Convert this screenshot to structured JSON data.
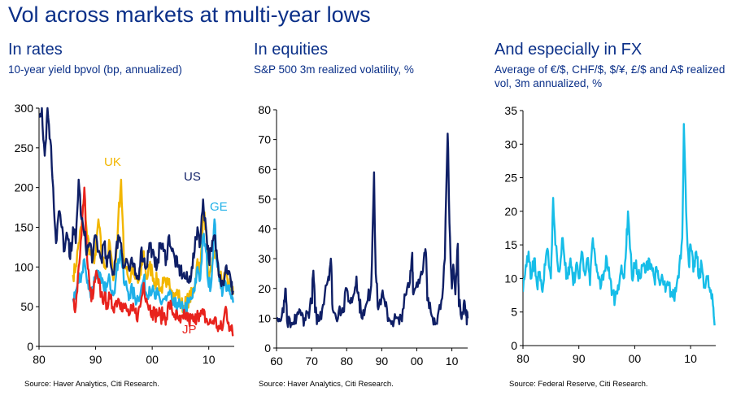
{
  "title": "Vol across markets at multi-year lows",
  "colors": {
    "title": "#0a2f88",
    "us": "#0f1f66",
    "uk": "#f2b600",
    "ge": "#1fb0e8",
    "jp": "#e8231d",
    "spx": "#0f1f66",
    "fx": "#16bde8"
  },
  "panels": [
    {
      "title": "In rates",
      "subtitle": "10-year yield bpvol (bp, annualized)",
      "source": "Source: Haver Analytics, Citi Research."
    },
    {
      "title": "In equities",
      "subtitle": "S&P 500 3m realized volatility, %",
      "source": "Source: Haver Analytics, Citi Research."
    },
    {
      "title": "And especially in FX",
      "subtitle": "Average of €/$, CHF/$, $/¥, £/$ and A$ realized vol, 3m annualized, %",
      "source": "Source: Federal Reserve, Citi Research."
    }
  ],
  "chart_data": [
    {
      "type": "line",
      "title": "In rates",
      "subtitle": "10-year yield bpvol (bp, annualized)",
      "xlim": [
        1980,
        2014.5
      ],
      "ylim": [
        0,
        300
      ],
      "xticks": [
        1980,
        1990,
        2000,
        2010
      ],
      "xtick_labels": [
        "80",
        "90",
        "00",
        "10"
      ],
      "yticks": [
        0,
        50,
        100,
        150,
        200,
        250,
        300
      ],
      "ytick_labels": [
        "0",
        "50",
        "100",
        "150",
        "200",
        "250",
        "300"
      ],
      "annotations": [
        {
          "text": "UK",
          "series": "UK"
        },
        {
          "text": "US",
          "series": "US"
        },
        {
          "text": "GE",
          "series": "GE"
        },
        {
          "text": "JP",
          "series": "JP"
        }
      ],
      "series": [
        {
          "name": "UK",
          "color_key": "uk",
          "x": [
            1986,
            1986.5,
            1987,
            1987.5,
            1988,
            1988.5,
            1989,
            1989.5,
            1990,
            1990.5,
            1991,
            1991.5,
            1992,
            1992.5,
            1993,
            1993.5,
            1994,
            1994.5,
            1995,
            1995.5,
            1996,
            1996.5,
            1997,
            1997.5,
            1998,
            1998.5,
            1999,
            1999.5,
            2000,
            2000.5,
            2001,
            2001.5,
            2002,
            2002.5,
            2003,
            2003.5,
            2004,
            2004.5,
            2005,
            2005.5,
            2006,
            2006.5,
            2007,
            2007.5,
            2008,
            2008.5,
            2009,
            2009.5,
            2010,
            2010.5,
            2011,
            2011.5,
            2012,
            2012.5,
            2013,
            2013.5,
            2014,
            2014.3
          ],
          "y": [
            90,
            100,
            130,
            150,
            190,
            140,
            120,
            110,
            115,
            160,
            120,
            100,
            110,
            130,
            90,
            100,
            160,
            210,
            110,
            100,
            80,
            100,
            85,
            80,
            90,
            120,
            85,
            100,
            95,
            80,
            85,
            70,
            80,
            75,
            85,
            70,
            60,
            70,
            55,
            50,
            55,
            60,
            65,
            75,
            110,
            90,
            170,
            150,
            80,
            95,
            120,
            105,
            90,
            75,
            100,
            80,
            70,
            65
          ]
        },
        {
          "name": "GE",
          "color_key": "ge",
          "x": [
            1986,
            1986.5,
            1987,
            1987.5,
            1988,
            1988.5,
            1989,
            1989.5,
            1990,
            1990.5,
            1991,
            1991.5,
            1992,
            1992.5,
            1993,
            1993.5,
            1994,
            1994.5,
            1995,
            1995.5,
            1996,
            1996.5,
            1997,
            1997.5,
            1998,
            1998.5,
            1999,
            1999.5,
            2000,
            2000.5,
            2001,
            2001.5,
            2002,
            2002.5,
            2003,
            2003.5,
            2004,
            2004.5,
            2005,
            2005.5,
            2006,
            2006.5,
            2007,
            2007.5,
            2008,
            2008.5,
            2009,
            2009.5,
            2010,
            2010.5,
            2011,
            2011.5,
            2012,
            2012.5,
            2013,
            2013.5,
            2014,
            2014.3
          ],
          "y": [
            60,
            70,
            80,
            90,
            110,
            80,
            70,
            75,
            90,
            95,
            80,
            70,
            75,
            85,
            70,
            80,
            110,
            120,
            80,
            75,
            65,
            70,
            60,
            62,
            70,
            85,
            65,
            75,
            70,
            60,
            65,
            55,
            60,
            58,
            65,
            55,
            50,
            55,
            48,
            45,
            50,
            55,
            60,
            70,
            100,
            85,
            140,
            120,
            75,
            85,
            160,
            100,
            85,
            70,
            80,
            70,
            60,
            55
          ]
        },
        {
          "name": "JP",
          "color_key": "jp",
          "x": [
            1986,
            1986.5,
            1987,
            1987.5,
            1988,
            1988.5,
            1989,
            1989.5,
            1990,
            1990.5,
            1991,
            1991.5,
            1992,
            1992.5,
            1993,
            1993.5,
            1994,
            1994.5,
            1995,
            1995.5,
            1996,
            1996.5,
            1997,
            1997.5,
            1998,
            1998.5,
            1999,
            1999.5,
            2000,
            2000.5,
            2001,
            2001.5,
            2002,
            2002.5,
            2003,
            2003.5,
            2004,
            2004.5,
            2005,
            2005.5,
            2006,
            2006.5,
            2007,
            2007.5,
            2008,
            2008.5,
            2009,
            2009.5,
            2010,
            2010.5,
            2011,
            2011.5,
            2012,
            2012.5,
            2013,
            2013.5,
            2014,
            2014.3
          ],
          "y": [
            60,
            50,
            100,
            140,
            200,
            110,
            70,
            60,
            90,
            80,
            65,
            60,
            55,
            60,
            50,
            55,
            60,
            55,
            50,
            45,
            40,
            45,
            42,
            40,
            55,
            80,
            60,
            50,
            45,
            40,
            42,
            38,
            40,
            36,
            55,
            45,
            40,
            35,
            30,
            35,
            40,
            32,
            35,
            30,
            45,
            38,
            40,
            35,
            28,
            30,
            35,
            25,
            22,
            25,
            50,
            30,
            20,
            15
          ]
        },
        {
          "name": "US",
          "color_key": "us",
          "x": [
            1980,
            1980.5,
            1981,
            1981.5,
            1982,
            1982.5,
            1983,
            1983.5,
            1984,
            1984.5,
            1985,
            1985.5,
            1986,
            1986.5,
            1987,
            1987.5,
            1988,
            1988.5,
            1989,
            1989.5,
            1990,
            1990.5,
            1991,
            1991.5,
            1992,
            1992.5,
            1993,
            1993.5,
            1994,
            1994.5,
            1995,
            1995.5,
            1996,
            1996.5,
            1997,
            1997.5,
            1998,
            1998.5,
            1999,
            1999.5,
            2000,
            2000.5,
            2001,
            2001.5,
            2002,
            2002.5,
            2003,
            2003.5,
            2004,
            2004.5,
            2005,
            2005.5,
            2006,
            2006.5,
            2007,
            2007.5,
            2008,
            2008.5,
            2009,
            2009.5,
            2010,
            2010.5,
            2011,
            2011.5,
            2012,
            2012.5,
            2013,
            2013.5,
            2014,
            2014.3
          ],
          "y": [
            290,
            300,
            240,
            300,
            260,
            200,
            130,
            170,
            150,
            120,
            140,
            110,
            150,
            130,
            210,
            160,
            140,
            120,
            130,
            110,
            140,
            120,
            110,
            130,
            100,
            120,
            90,
            110,
            140,
            130,
            100,
            110,
            95,
            105,
            90,
            85,
            120,
            110,
            100,
            130,
            120,
            100,
            110,
            130,
            120,
            110,
            140,
            120,
            110,
            100,
            95,
            90,
            85,
            80,
            100,
            120,
            150,
            130,
            185,
            150,
            110,
            120,
            140,
            110,
            90,
            80,
            100,
            95,
            75,
            70
          ]
        }
      ]
    },
    {
      "type": "line",
      "title": "In equities",
      "subtitle": "S&P 500 3m realized volatility, %",
      "xlim": [
        1960,
        2014.5
      ],
      "ylim": [
        0,
        80
      ],
      "xticks": [
        1960,
        1970,
        1980,
        1990,
        2000,
        2010
      ],
      "xtick_labels": [
        "60",
        "70",
        "80",
        "90",
        "00",
        "10"
      ],
      "yticks": [
        0,
        10,
        20,
        30,
        40,
        50,
        60,
        70,
        80
      ],
      "ytick_labels": [
        "0",
        "10",
        "20",
        "30",
        "40",
        "50",
        "60",
        "70",
        "80"
      ],
      "series": [
        {
          "name": "S&P 500 3m realized volatility",
          "color_key": "spx",
          "x": [
            1960,
            1961,
            1962,
            1962.5,
            1963,
            1964,
            1965,
            1966,
            1967,
            1968,
            1969,
            1970,
            1970.5,
            1971,
            1972,
            1973,
            1974,
            1974.8,
            1975.5,
            1976,
            1977,
            1978,
            1979,
            1980,
            1981,
            1982,
            1982.8,
            1983.5,
            1984,
            1985,
            1986,
            1987,
            1987.8,
            1988.3,
            1989,
            1990,
            1991,
            1992,
            1993,
            1994,
            1995,
            1996,
            1997,
            1998,
            1998.7,
            1999,
            2000,
            2001,
            2002,
            2002.6,
            2003,
            2004,
            2005,
            2006,
            2007,
            2008,
            2008.8,
            2009.3,
            2010,
            2010.4,
            2011,
            2011.7,
            2012,
            2013,
            2013.5,
            2014,
            2014.5
          ],
          "y": [
            10,
            9,
            12,
            20,
            9,
            7,
            8,
            12,
            11,
            10,
            12,
            15,
            26,
            12,
            9,
            13,
            21,
            24,
            30,
            13,
            10,
            14,
            12,
            20,
            15,
            18,
            24,
            16,
            13,
            11,
            16,
            21,
            59,
            25,
            13,
            18,
            14,
            10,
            9,
            10,
            8,
            13,
            18,
            22,
            32,
            18,
            22,
            24,
            30,
            32,
            16,
            12,
            10,
            11,
            16,
            30,
            72,
            42,
            20,
            28,
            18,
            35,
            14,
            12,
            16,
            11,
            10
          ]
        }
      ]
    },
    {
      "type": "line",
      "title": "And especially in FX",
      "subtitle": "Average of €/$, CHF/$, $/¥, £/$ and A$ realized vol, 3m annualized, %",
      "xlim": [
        1980,
        2014.5
      ],
      "ylim": [
        0,
        35
      ],
      "xticks": [
        1980,
        1990,
        2000,
        2010
      ],
      "xtick_labels": [
        "80",
        "90",
        "00",
        "10"
      ],
      "yticks": [
        0,
        5,
        10,
        15,
        20,
        25,
        30,
        35
      ],
      "ytick_labels": [
        "0",
        "5",
        "10",
        "15",
        "20",
        "25",
        "30",
        "35"
      ],
      "series": [
        {
          "name": "FX realized vol average",
          "color_key": "fx",
          "x": [
            1980,
            1980.5,
            1981,
            1981.5,
            1982,
            1982.5,
            1983,
            1983.5,
            1984,
            1984.5,
            1985,
            1985.4,
            1985.8,
            1986.5,
            1987,
            1987.5,
            1988,
            1988.5,
            1989,
            1989.5,
            1990,
            1990.5,
            1991,
            1991.5,
            1992,
            1992.5,
            1993,
            1993.5,
            1994,
            1994.5,
            1995,
            1995.5,
            1996,
            1996.5,
            1997,
            1997.5,
            1998,
            1998.5,
            1998.8,
            1999.5,
            2000,
            2000.5,
            2001,
            2001.5,
            2002,
            2002.5,
            2003,
            2003.5,
            2004,
            2004.5,
            2005,
            2005.5,
            2006,
            2006.5,
            2007,
            2007.5,
            2008,
            2008.5,
            2008.8,
            2009.2,
            2009.7,
            2010,
            2010.5,
            2011,
            2011.5,
            2012,
            2012.5,
            2013,
            2013.5,
            2014,
            2014.3
          ],
          "y": [
            8,
            12,
            14,
            10,
            13,
            9,
            11,
            8,
            12,
            14,
            10,
            22,
            15,
            11,
            16,
            12,
            10,
            13,
            9,
            12,
            10,
            14,
            11,
            13,
            9,
            16,
            12,
            10,
            9,
            11,
            13,
            10,
            8,
            7,
            9,
            11,
            10,
            15,
            20,
            10,
            12,
            11,
            10,
            12,
            11,
            13,
            12,
            10,
            11,
            9,
            10,
            8,
            9,
            8,
            7,
            9,
            12,
            16,
            33,
            20,
            12,
            15,
            11,
            14,
            10,
            12,
            9,
            10,
            8,
            6,
            3
          ]
        }
      ]
    }
  ]
}
